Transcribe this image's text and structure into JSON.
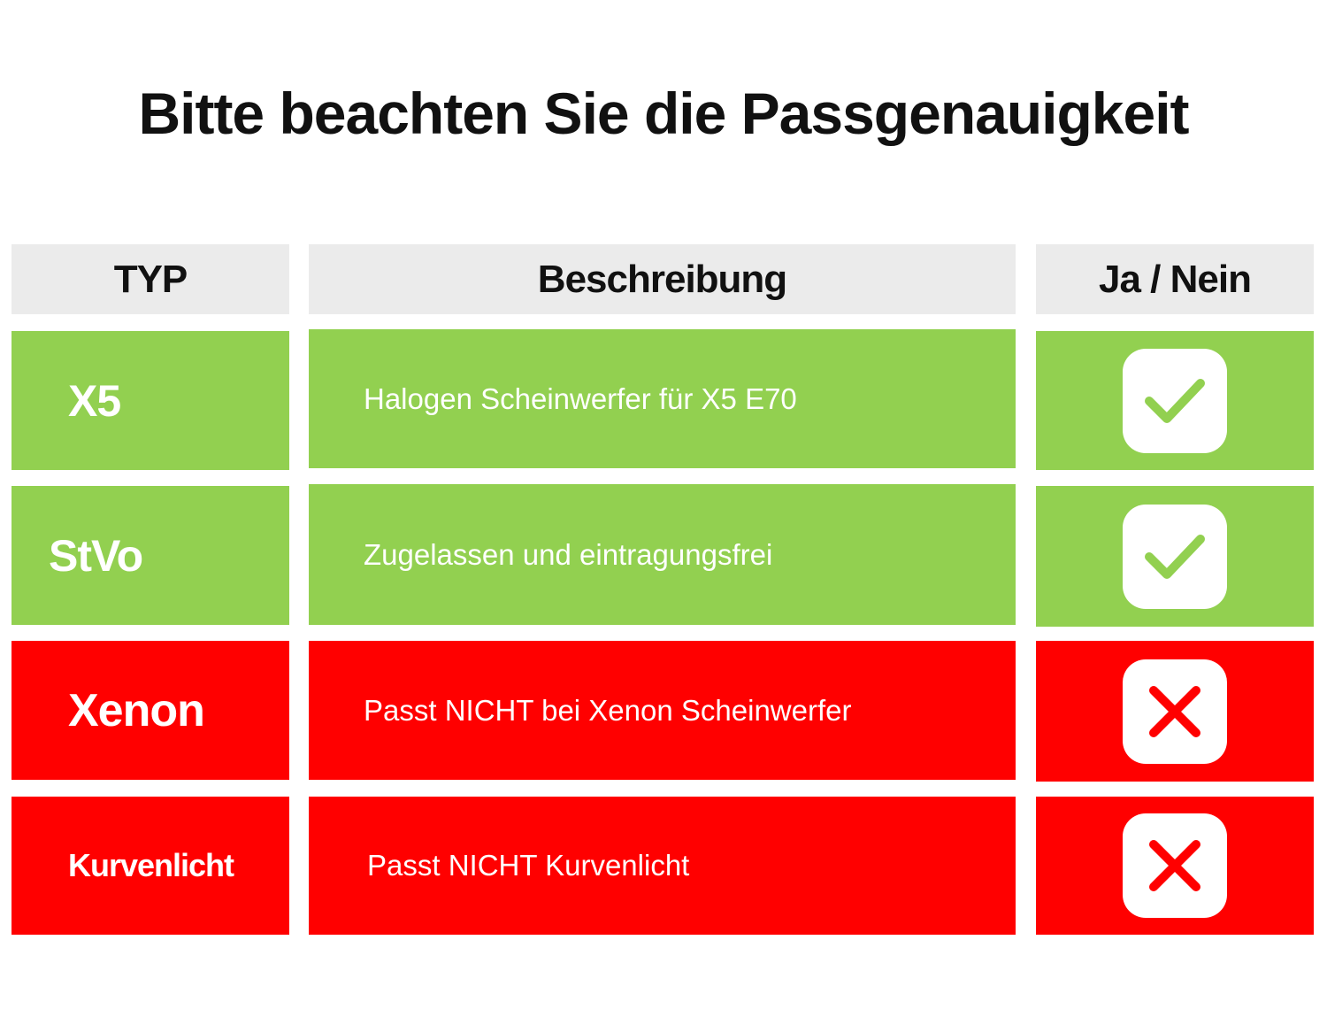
{
  "title": "Bitte beachten Sie die Passgenauigkeit",
  "header": {
    "typ": "TYP",
    "beschreibung": "Beschreibung",
    "ja_nein": "Ja / Nein"
  },
  "rows": [
    {
      "typ": "X5",
      "beschreibung": "Halogen Scheinwerfer für X5 E70",
      "status": "ja",
      "icon": "check-icon",
      "color": "#92d050"
    },
    {
      "typ": "StVo",
      "beschreibung": "Zugelassen und eintragungsfrei",
      "status": "ja",
      "icon": "check-icon",
      "color": "#92d050"
    },
    {
      "typ": "Xenon",
      "beschreibung": "Passt NICHT bei Xenon Scheinwerfer",
      "status": "nein",
      "icon": "cross-icon",
      "color": "#ff0000"
    },
    {
      "typ": "Kurvenlicht",
      "beschreibung": "Passt NICHT Kurvenlicht",
      "status": "nein",
      "icon": "cross-icon",
      "color": "#ff0000"
    }
  ],
  "colors": {
    "green": "#92d050",
    "red": "#ff0000",
    "header_bg": "#ebebeb"
  }
}
